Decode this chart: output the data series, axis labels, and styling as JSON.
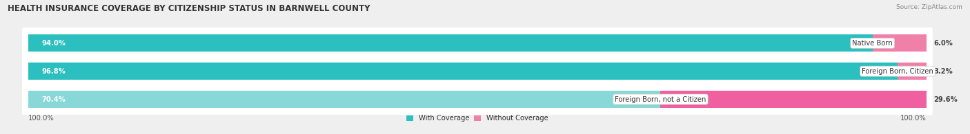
{
  "title": "HEALTH INSURANCE COVERAGE BY CITIZENSHIP STATUS IN BARNWELL COUNTY",
  "source": "Source: ZipAtlas.com",
  "categories": [
    "Native Born",
    "Foreign Born, Citizen",
    "Foreign Born, not a Citizen"
  ],
  "with_coverage": [
    94.0,
    96.8,
    70.4
  ],
  "without_coverage": [
    6.0,
    3.2,
    29.6
  ],
  "color_with_0": "#2bbfbf",
  "color_with_1": "#2bbfbf",
  "color_with_2": "#88d8d8",
  "color_without_0": "#f080a8",
  "color_without_1": "#f080a8",
  "color_without_2": "#f060a0",
  "bg_color": "#efefef",
  "bar_row_bg": "#e4e4e4",
  "label_100_left": "100.0%",
  "label_100_right": "100.0%",
  "legend_with": "With Coverage",
  "legend_without": "Without Coverage",
  "title_fontsize": 8.5,
  "label_fontsize": 7.2,
  "source_fontsize": 6.5,
  "tick_fontsize": 7.2
}
